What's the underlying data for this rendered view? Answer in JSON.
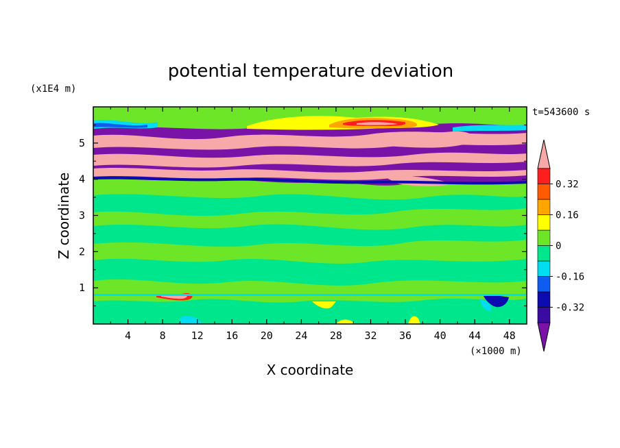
{
  "chart_data": {
    "type": "heatmap",
    "title": "potential temperature deviation",
    "xlabel": "X coordinate",
    "ylabel": "Z coordinate",
    "x_unit": "(×1000 m)",
    "y_unit": "(x1E4 m)",
    "time_label": "t=543600 s",
    "xlim": [
      0,
      50
    ],
    "ylim": [
      0,
      6
    ],
    "x_ticks": [
      "4",
      "8",
      "12",
      "16",
      "20",
      "24",
      "28",
      "32",
      "36",
      "40",
      "44",
      "48"
    ],
    "y_ticks": [
      "1",
      "2",
      "3",
      "4",
      "5"
    ],
    "colorbar": {
      "levels": [
        -0.4,
        -0.32,
        -0.24,
        -0.16,
        -0.08,
        0,
        0.08,
        0.16,
        0.24,
        0.32,
        0.4
      ],
      "labels": [
        "0.32",
        "0.16",
        "0",
        "-0.16",
        "-0.32"
      ],
      "colors": [
        "#7b12a8",
        "#3b0aa0",
        "#0b0bb0",
        "#0f5df0",
        "#00dcf0",
        "#00e68c",
        "#6ee628",
        "#ffff00",
        "#ffa500",
        "#ff5a00",
        "#ff1e1e",
        "#f7a8a8"
      ],
      "extend": "both"
    },
    "bands": [
      {
        "z_from": 0.0,
        "z_to": 0.85,
        "level": "0",
        "note": "boundary layer, mostly green/cyan"
      },
      {
        "z_from": 0.85,
        "z_to": 3.9,
        "level": "0 to 0.08",
        "note": "alternating green layers"
      },
      {
        "z_from": 3.9,
        "z_to": 5.5,
        "level": ">0.4 / <-0.4",
        "note": "pink and purple stripes"
      },
      {
        "z_from": 5.5,
        "z_to": 6.0,
        "level": "0",
        "note": "green/cyan with orange patches"
      }
    ]
  }
}
